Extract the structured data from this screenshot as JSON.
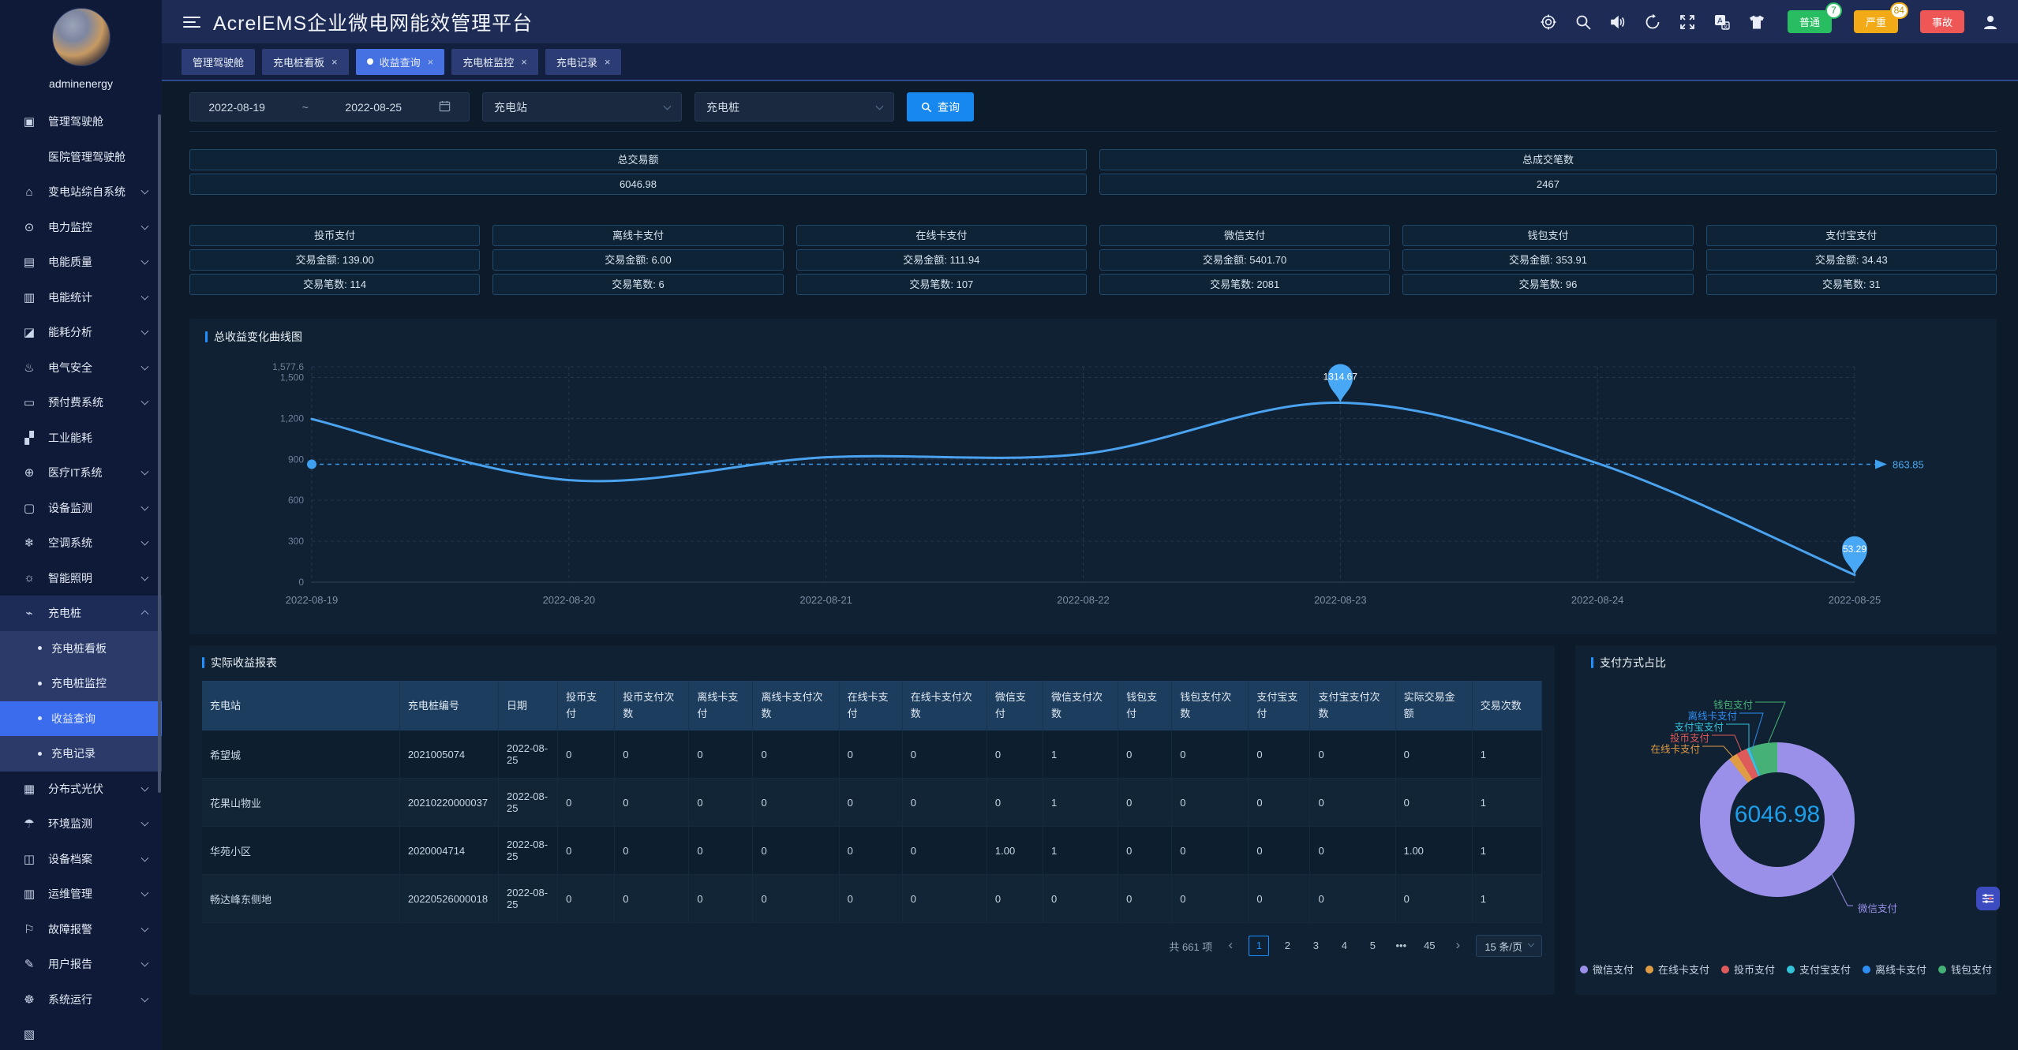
{
  "header": {
    "title": "AcrelEMS企业微电网能效管理平台",
    "icon_names": [
      "aim-icon",
      "search-icon",
      "volume-icon",
      "refresh-icon",
      "fullscreen-icon",
      "translate-icon",
      "theme-icon",
      "user-icon"
    ],
    "alerts": [
      {
        "label": "普通",
        "count": "7",
        "color": "#29bd62"
      },
      {
        "label": "严重",
        "count": "84",
        "color": "#f2ab17"
      },
      {
        "label": "事故",
        "count": "",
        "color": "#ef5757"
      }
    ]
  },
  "tabs": [
    {
      "label": "管理驾驶舱",
      "closable": false,
      "active": false
    },
    {
      "label": "充电桩看板",
      "closable": true,
      "active": false
    },
    {
      "label": "收益查询",
      "closable": true,
      "active": true
    },
    {
      "label": "充电桩监控",
      "closable": true,
      "active": false
    },
    {
      "label": "充电记录",
      "closable": true,
      "active": false
    }
  ],
  "sidebar": {
    "username": "adminenergy",
    "items": [
      {
        "icon": "dashboard-icon",
        "label": "管理驾驶舱",
        "children": [
          {
            "label": "医院管理驾驶舱"
          }
        ]
      },
      {
        "icon": "substation-icon",
        "label": "变电站综自系统",
        "chevron": "down"
      },
      {
        "icon": "power-monitor-icon",
        "label": "电力监控",
        "chevron": "down"
      },
      {
        "icon": "power-quality-icon",
        "label": "电能质量",
        "chevron": "down"
      },
      {
        "icon": "energy-stats-icon",
        "label": "电能统计",
        "chevron": "down"
      },
      {
        "icon": "energy-analysis-icon",
        "label": "能耗分析",
        "chevron": "down"
      },
      {
        "icon": "electrical-safety-icon",
        "label": "电气安全",
        "chevron": "down"
      },
      {
        "icon": "prepaid-icon",
        "label": "预付费系统",
        "chevron": "down"
      },
      {
        "icon": "industrial-energy-icon",
        "label": "工业能耗",
        "chevron": ""
      },
      {
        "icon": "medical-it-icon",
        "label": "医疗IT系统",
        "chevron": "down"
      },
      {
        "icon": "device-monitor-icon",
        "label": "设备监测",
        "chevron": "down"
      },
      {
        "icon": "hvac-icon",
        "label": "空调系统",
        "chevron": "down"
      },
      {
        "icon": "lighting-icon",
        "label": "智能照明",
        "chevron": "down"
      },
      {
        "icon": "charging-pile-icon",
        "label": "充电桩",
        "chevron": "up",
        "expanded": true,
        "children": [
          {
            "label": "充电桩看板",
            "active": false
          },
          {
            "label": "充电桩监控",
            "active": false
          },
          {
            "label": "收益查询",
            "active": true
          },
          {
            "label": "充电记录",
            "active": false
          }
        ]
      },
      {
        "icon": "pv-icon",
        "label": "分布式光伏",
        "chevron": "down"
      },
      {
        "icon": "env-monitor-icon",
        "label": "环境监测",
        "chevron": "down"
      },
      {
        "icon": "device-archive-icon",
        "label": "设备档案",
        "chevron": "down"
      },
      {
        "icon": "ops-icon",
        "label": "运维管理",
        "chevron": "down"
      },
      {
        "icon": "fault-alarm-icon",
        "label": "故障报警",
        "chevron": "down"
      },
      {
        "icon": "user-report-icon",
        "label": "用户报告",
        "chevron": "down"
      },
      {
        "icon": "system-run-icon",
        "label": "系统运行",
        "chevron": "down"
      }
    ]
  },
  "query": {
    "date_start": "2022-08-19",
    "date_separator": "~",
    "date_end": "2022-08-25",
    "station_placeholder": "充电站",
    "pile_placeholder": "充电桩",
    "search_label": "查询"
  },
  "summary": {
    "total_amount_label": "总交易额",
    "total_amount": "6046.98",
    "total_count_label": "总成交笔数",
    "total_count": "2467"
  },
  "payment_cards": [
    {
      "title": "投币支付",
      "amount_label": "交易金额:",
      "amount": "139.00",
      "count_label": "交易笔数:",
      "count": "114"
    },
    {
      "title": "离线卡支付",
      "amount_label": "交易金额:",
      "amount": "6.00",
      "count_label": "交易笔数:",
      "count": "6"
    },
    {
      "title": "在线卡支付",
      "amount_label": "交易金额:",
      "amount": "111.94",
      "count_label": "交易笔数:",
      "count": "107"
    },
    {
      "title": "微信支付",
      "amount_label": "交易金额:",
      "amount": "5401.70",
      "count_label": "交易笔数:",
      "count": "2081"
    },
    {
      "title": "钱包支付",
      "amount_label": "交易金额:",
      "amount": "353.91",
      "count_label": "交易笔数:",
      "count": "96"
    },
    {
      "title": "支付宝支付",
      "amount_label": "交易金额:",
      "amount": "34.43",
      "count_label": "交易笔数:",
      "count": "31"
    }
  ],
  "chart_data": [
    {
      "type": "line",
      "title": "总收益变化曲线图",
      "x": [
        "2022-08-19",
        "2022-08-20",
        "2022-08-21",
        "2022-08-22",
        "2022-08-23",
        "2022-08-24",
        "2022-08-25"
      ],
      "series": [
        {
          "name": "总收益",
          "values": [
            1195,
            748,
            915,
            940,
            1314.67,
            871,
            53.29
          ]
        }
      ],
      "y_ticks": [
        0,
        300,
        600,
        900,
        1200,
        1500,
        1577.6
      ],
      "y_tick_labels": [
        "0",
        "300",
        "600",
        "900",
        "1,200",
        "1,500",
        "1,577.6"
      ],
      "ylim": [
        0,
        1577.6
      ],
      "average_line": 863.85,
      "max_label": {
        "x": "2022-08-23",
        "value": "1314.67",
        "index": 4
      },
      "min_label": {
        "x": "2022-08-25",
        "value": "53.29",
        "index": 6
      },
      "grid": true,
      "line_color": "#4ba3f0"
    },
    {
      "type": "pie",
      "title": "支付方式占比",
      "center_total": "6046.98",
      "slices": [
        {
          "name": "微信支付",
          "value": 5401.7,
          "color": "#9b90e9"
        },
        {
          "name": "在线卡支付",
          "value": 111.94,
          "color": "#e09c44"
        },
        {
          "name": "投币支付",
          "value": 139.0,
          "color": "#df5a5a"
        },
        {
          "name": "支付宝支付",
          "value": 34.43,
          "color": "#35c3da"
        },
        {
          "name": "离线卡支付",
          "value": 6.0,
          "color": "#2f8df2"
        },
        {
          "name": "钱包支付",
          "value": 353.91,
          "color": "#46b176"
        }
      ],
      "legend_position": "bottom"
    }
  ],
  "table": {
    "title": "实际收益报表",
    "columns": [
      "充电站",
      "充电桩编号",
      "日期",
      "投币支付",
      "投币支付次数",
      "离线卡支付",
      "离线卡支付次数",
      "在线卡支付",
      "在线卡支付次数",
      "微信支付",
      "微信支付次数",
      "钱包支付",
      "钱包支付次数",
      "支付宝支付",
      "支付宝支付次数",
      "实际交易金额",
      "交易次数"
    ],
    "rows": [
      [
        "希望城",
        "2021005074",
        "2022-08-25",
        "0",
        "0",
        "0",
        "0",
        "0",
        "0",
        "0",
        "1",
        "0",
        "0",
        "0",
        "0",
        "0",
        "1"
      ],
      [
        "花果山物业",
        "20210220000037",
        "2022-08-25",
        "0",
        "0",
        "0",
        "0",
        "0",
        "0",
        "0",
        "1",
        "0",
        "0",
        "0",
        "0",
        "0",
        "1"
      ],
      [
        "华苑小区",
        "2020004714",
        "2022-08-25",
        "0",
        "0",
        "0",
        "0",
        "0",
        "0",
        "1.00",
        "1",
        "0",
        "0",
        "0",
        "0",
        "1.00",
        "1"
      ],
      [
        "畅达峰东侧地",
        "20220526000018",
        "2022-08-25",
        "0",
        "0",
        "0",
        "0",
        "0",
        "0",
        "0",
        "0",
        "0",
        "0",
        "0",
        "0",
        "0",
        "1"
      ]
    ],
    "pagination": {
      "total_text": "共 661 项",
      "pages": [
        "1",
        "2",
        "3",
        "4",
        "5",
        "•••",
        "45"
      ],
      "active_page": "1",
      "page_size": "15 条/页"
    }
  },
  "donut_panel": {
    "title": "支付方式占比"
  }
}
